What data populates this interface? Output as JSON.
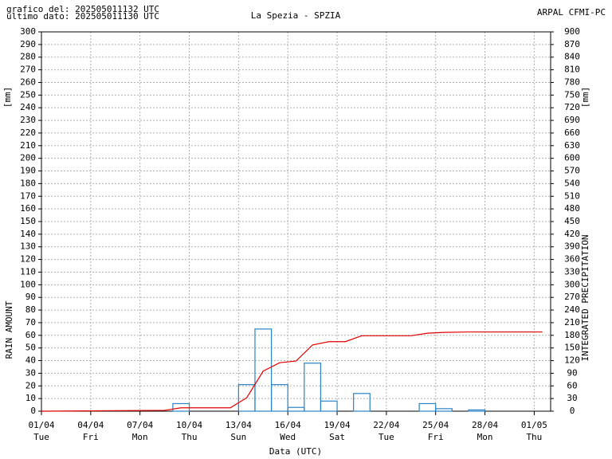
{
  "chart_data": {
    "type": "bar",
    "header_left": [
      "grafico del: 202505011132 UTC",
      "ultimo dato: 202505011130 UTC"
    ],
    "title": "La Spezia - SPZIA",
    "header_right": "ARPAL CFMI-PC",
    "ylabel": "RAIN AMOUNT",
    "y2label": "INTEGRATED PRECIPITATION",
    "yunit": "[mm]",
    "y2unit": "[mm]",
    "xlabel": "Data (UTC)",
    "xlim": [
      0,
      31
    ],
    "xticks": [
      {
        "value": 0,
        "label": "01/04"
      },
      {
        "value": 3,
        "label": "04/04"
      },
      {
        "value": 6,
        "label": "07/04"
      },
      {
        "value": 9,
        "label": "10/04"
      },
      {
        "value": 12,
        "label": "13/04"
      },
      {
        "value": 15,
        "label": "16/04"
      },
      {
        "value": 18,
        "label": "19/04"
      },
      {
        "value": 21,
        "label": "22/04"
      },
      {
        "value": 24,
        "label": "25/04"
      },
      {
        "value": 27,
        "label": "28/04"
      },
      {
        "value": 30,
        "label": "01/05"
      }
    ],
    "xtick_weekdays": [
      "Tue",
      "Fri",
      "Mon",
      "Thu",
      "Sun",
      "Wed",
      "Sat",
      "Tue",
      "Fri",
      "Mon",
      "Thu"
    ],
    "ylim": [
      0,
      300
    ],
    "yticks": [
      0,
      10,
      20,
      30,
      40,
      50,
      60,
      70,
      80,
      90,
      100,
      110,
      120,
      130,
      140,
      150,
      160,
      170,
      180,
      190,
      200,
      210,
      220,
      230,
      240,
      250,
      260,
      270,
      280,
      290,
      300
    ],
    "y2lim": [
      0,
      900
    ],
    "y2ticks": [
      0,
      30,
      60,
      90,
      120,
      150,
      180,
      210,
      240,
      270,
      300,
      330,
      360,
      390,
      420,
      450,
      480,
      510,
      540,
      570,
      600,
      630,
      660,
      690,
      720,
      750,
      780,
      810,
      840,
      870,
      900
    ],
    "grid": true,
    "series": [
      {
        "color": "#2a84c6",
        "bins": [
          0,
          1,
          2,
          3,
          4,
          5,
          6,
          7,
          8,
          9,
          10,
          11,
          12,
          13,
          14,
          15,
          16,
          17,
          18,
          19,
          20,
          21,
          22,
          23,
          24,
          25,
          26,
          27,
          28,
          29,
          30,
          31
        ],
        "values": [
          0,
          0,
          0,
          0,
          0,
          0,
          0,
          0,
          6,
          0,
          0,
          0,
          21,
          65,
          21,
          3,
          38,
          8,
          0,
          14,
          0,
          0,
          0,
          6,
          2,
          0,
          1,
          0,
          0,
          0,
          0
        ]
      },
      {
        "color": "#e00000",
        "axis": "y2",
        "x": [
          0,
          7.5,
          8.5,
          11.5,
          12.5,
          13.5,
          14.5,
          15.5,
          16.5,
          17.5,
          18.5,
          19.5,
          22.5,
          23.5,
          24.5,
          26.0,
          30.5
        ],
        "values": [
          0,
          2,
          8,
          8,
          32,
          95,
          115,
          119,
          157,
          165,
          165,
          179,
          179,
          185,
          187,
          188,
          188
        ]
      }
    ]
  }
}
